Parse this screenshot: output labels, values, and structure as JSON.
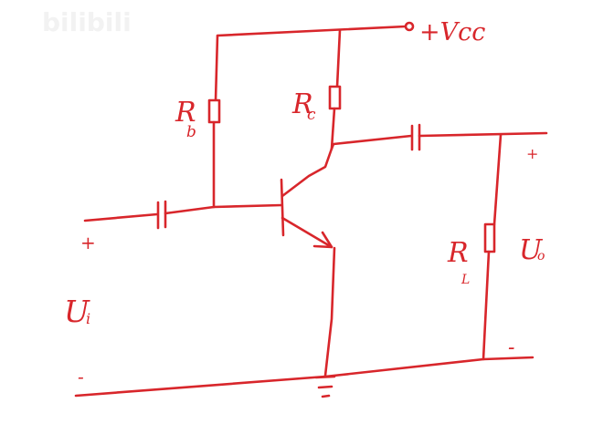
{
  "watermark": {
    "text": "bilibili",
    "color": "#f2f2f2"
  },
  "ink_color": "#d8262b",
  "supply": {
    "label": "+Vcc"
  },
  "resistors": {
    "base": {
      "main": "R",
      "sub": "b"
    },
    "collector": {
      "main": "R",
      "sub": "c"
    },
    "load": {
      "main": "R",
      "sub": "L"
    }
  },
  "ports": {
    "input": {
      "main": "U",
      "sub": "i",
      "plus": "+",
      "minus": "-"
    },
    "output": {
      "main": "U",
      "sub": "o",
      "plus": "+",
      "minus": "-"
    }
  },
  "icons": {
    "transistor": "npn-transistor-icon",
    "ground": "ground-icon",
    "capacitor": "capacitor-icon",
    "resistor": "resistor-icon"
  }
}
